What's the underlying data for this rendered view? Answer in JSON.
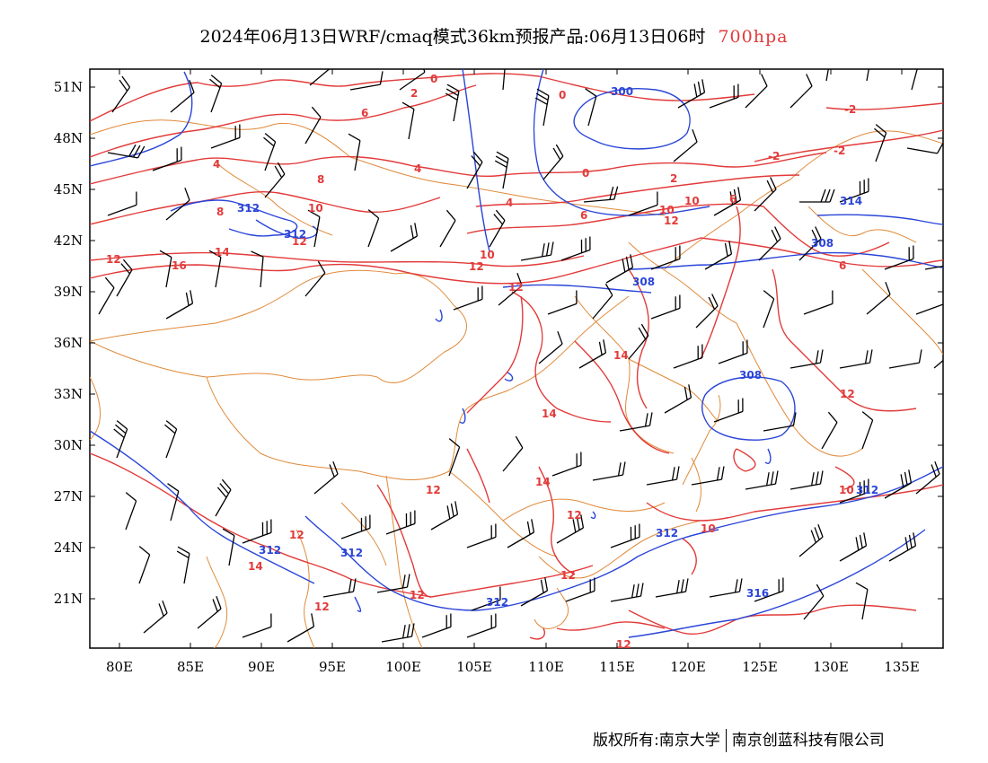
{
  "title": {
    "main": "2024年06月13日WRF/cmaq模式36km预报产品:06月13日06时",
    "level": "700hpa"
  },
  "axes": {
    "x_ticks": [
      "80E",
      "85E",
      "90E",
      "95E",
      "100E",
      "105E",
      "110E",
      "115E",
      "120E",
      "125E",
      "130E",
      "135E"
    ],
    "y_ticks": [
      "51N",
      "48N",
      "45N",
      "42N",
      "39N",
      "36N",
      "33N",
      "30N",
      "27N",
      "24N",
      "21N"
    ]
  },
  "contour_labels": {
    "temperature": [
      "0",
      "-2",
      "2",
      "-2",
      "6",
      "4",
      "4",
      "0",
      "8",
      "10",
      "12",
      "14",
      "16",
      "10",
      "12",
      "14",
      "14",
      "12",
      "12",
      "12",
      "14",
      "12",
      "10",
      "12",
      "12",
      "12",
      "12",
      "8",
      "6",
      "4",
      "6",
      "2",
      "0",
      "10",
      "12",
      "10",
      "6",
      "-2",
      "12",
      "12",
      "10",
      "14"
    ],
    "height": [
      "300",
      "312",
      "312",
      "308",
      "308",
      "308",
      "312",
      "312",
      "312",
      "316",
      "312",
      "312",
      "314"
    ]
  },
  "footer": {
    "left": "版权所有:南京大学",
    "right": "南京创蓝科技有限公司"
  },
  "colors": {
    "temperature": "#e23a3a",
    "height": "#2a45d8",
    "border": "#e08a3a",
    "wind": "#000000"
  }
}
